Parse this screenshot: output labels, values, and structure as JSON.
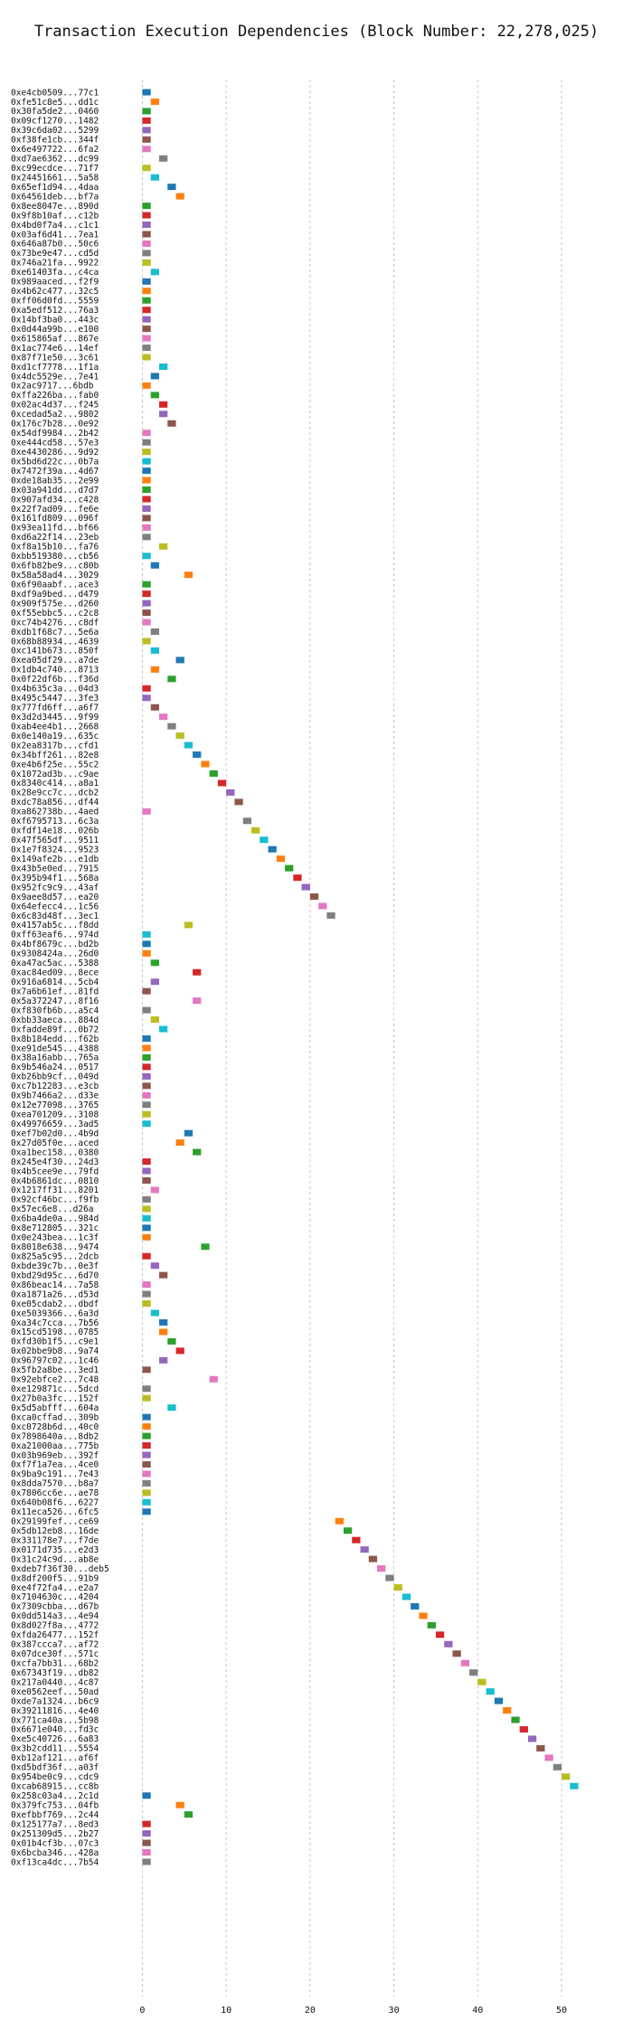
{
  "chart_data": {
    "type": "gantt",
    "title": "Transaction Execution Dependencies (Block Number: 22,278,025)",
    "xlabel": "",
    "ylabel": "",
    "xlim": [
      -3.5,
      55.5
    ],
    "xticks": [
      0,
      10,
      20,
      30,
      40,
      50
    ],
    "grid": true,
    "palette": [
      "#1f77b4",
      "#ff7f0e",
      "#2ca02c",
      "#d62728",
      "#9467bd",
      "#8c564b",
      "#e377c2",
      "#7f7f7f",
      "#bcbd22",
      "#17becf"
    ],
    "transactions": [
      {
        "hash": "0xe4cb0509...77c1",
        "start": 0
      },
      {
        "hash": "0xfe51c8e5...dd1c",
        "start": 1
      },
      {
        "hash": "0x30fa5de2...0460",
        "start": 0
      },
      {
        "hash": "0x09cf1270...1482",
        "start": 0
      },
      {
        "hash": "0x39c6da02...5299",
        "start": 0
      },
      {
        "hash": "0xf38fe1cb...344f",
        "start": 0
      },
      {
        "hash": "0x6e497722...6fa2",
        "start": 0
      },
      {
        "hash": "0xd7ae6362...dc99",
        "start": 2
      },
      {
        "hash": "0xc99ecdce...71f7",
        "start": 0
      },
      {
        "hash": "0x24451661...5a58",
        "start": 1
      },
      {
        "hash": "0x65ef1d94...4daa",
        "start": 3
      },
      {
        "hash": "0x64561deb...bf7a",
        "start": 4
      },
      {
        "hash": "0x8ee8047e...890d",
        "start": 0
      },
      {
        "hash": "0x9f8b10af...c12b",
        "start": 0
      },
      {
        "hash": "0x4bd0f7a4...c1c1",
        "start": 0
      },
      {
        "hash": "0x03af6d41...7ea1",
        "start": 0
      },
      {
        "hash": "0x646a87b0...50c6",
        "start": 0
      },
      {
        "hash": "0x73be9e47...cd5d",
        "start": 0
      },
      {
        "hash": "0x746a21fa...9922",
        "start": 0
      },
      {
        "hash": "0xe61403fa...c4ca",
        "start": 1
      },
      {
        "hash": "0x989aaced...f2f9",
        "start": 0
      },
      {
        "hash": "0x4b62c477...32c5",
        "start": 0
      },
      {
        "hash": "0xff06d0fd...5559",
        "start": 0
      },
      {
        "hash": "0xa5edf512...76a3",
        "start": 0
      },
      {
        "hash": "0x14bf3ba0...443c",
        "start": 0
      },
      {
        "hash": "0x0d44a99b...e100",
        "start": 0
      },
      {
        "hash": "0x615865af...867e",
        "start": 0
      },
      {
        "hash": "0x1ac774e6...14ef",
        "start": 0
      },
      {
        "hash": "0x87f71e50...3c61",
        "start": 0
      },
      {
        "hash": "0xd1cf7778...1f1a",
        "start": 2
      },
      {
        "hash": "0x4dc5529e...7e41",
        "start": 1
      },
      {
        "hash": "0x2ac9717...6bdb",
        "start": 0
      },
      {
        "hash": "0xffa226ba...fab0",
        "start": 1
      },
      {
        "hash": "0x02ac4d37...f245",
        "start": 2
      },
      {
        "hash": "0xcedad5a2...9802",
        "start": 2
      },
      {
        "hash": "0x176c7b28...0e92",
        "start": 3
      },
      {
        "hash": "0x54df9984...2b42",
        "start": 0
      },
      {
        "hash": "0xe444cd58...57e3",
        "start": 0
      },
      {
        "hash": "0xe4430286...9d92",
        "start": 0
      },
      {
        "hash": "0x5bd6d22c...0b7a",
        "start": 0
      },
      {
        "hash": "0x7472f39a...4d67",
        "start": 0
      },
      {
        "hash": "0xde18ab35...2e99",
        "start": 0
      },
      {
        "hash": "0x03a941dd...d7d7",
        "start": 0
      },
      {
        "hash": "0x907afd34...c428",
        "start": 0
      },
      {
        "hash": "0x22f7ad09...fe6e",
        "start": 0
      },
      {
        "hash": "0x161fd809...096f",
        "start": 0
      },
      {
        "hash": "0x93ea11fd...bf66",
        "start": 0
      },
      {
        "hash": "0xd6a22f14...23eb",
        "start": 0
      },
      {
        "hash": "0xf8a15b10...fa76",
        "start": 2
      },
      {
        "hash": "0xbb519380...cb56",
        "start": 0
      },
      {
        "hash": "0x6fb82be9...c80b",
        "start": 1
      },
      {
        "hash": "0x58a58ad4...3029",
        "start": 5
      },
      {
        "hash": "0x6f90aabf...ace3",
        "start": 0
      },
      {
        "hash": "0xdf9a9bed...d479",
        "start": 0
      },
      {
        "hash": "0x909f575e...d260",
        "start": 0
      },
      {
        "hash": "0xf55ebbc5...c2c8",
        "start": 0
      },
      {
        "hash": "0xc74b4276...c8df",
        "start": 0
      },
      {
        "hash": "0xdb1f68c7...5e6a",
        "start": 1
      },
      {
        "hash": "0x68b88934...4639",
        "start": 0
      },
      {
        "hash": "0xc141b673...850f",
        "start": 1
      },
      {
        "hash": "0xea05df29...a7de",
        "start": 4
      },
      {
        "hash": "0x1db4c740...8713",
        "start": 1
      },
      {
        "hash": "0x0f22df6b...f36d",
        "start": 3
      },
      {
        "hash": "0x4b635c3a...04d3",
        "start": 0
      },
      {
        "hash": "0x495c5447...3fe3",
        "start": 0
      },
      {
        "hash": "0x777fd6ff...a6f7",
        "start": 1
      },
      {
        "hash": "0x3d2d3445...9f99",
        "start": 2
      },
      {
        "hash": "0xab4ee4b1...2668",
        "start": 3
      },
      {
        "hash": "0x0e140a19...635c",
        "start": 4
      },
      {
        "hash": "0x2ea8317b...cfd1",
        "start": 5
      },
      {
        "hash": "0x34bff261...82e8",
        "start": 6
      },
      {
        "hash": "0xe4b6f25e...55c2",
        "start": 7
      },
      {
        "hash": "0x1072ad3b...c9ae",
        "start": 8
      },
      {
        "hash": "0x8340c414...a8a1",
        "start": 9
      },
      {
        "hash": "0x28e9cc7c...dcb2",
        "start": 10
      },
      {
        "hash": "0xdc78a856...df44",
        "start": 11
      },
      {
        "hash": "0xa862738b...4aed",
        "start": 0
      },
      {
        "hash": "0xf6795713...6c3a",
        "start": 12
      },
      {
        "hash": "0xfdf14e18...026b",
        "start": 13
      },
      {
        "hash": "0x47f565df...9511",
        "start": 14
      },
      {
        "hash": "0x1e7f8324...9523",
        "start": 15
      },
      {
        "hash": "0x149afe2b...e1db",
        "start": 16
      },
      {
        "hash": "0x43b5e0ed...7915",
        "start": 17
      },
      {
        "hash": "0x395b94f1...568a",
        "start": 18
      },
      {
        "hash": "0x952fc9c9...43af",
        "start": 19
      },
      {
        "hash": "0x9aee8d57...ea20",
        "start": 20
      },
      {
        "hash": "0x64efecc4...1c56",
        "start": 21
      },
      {
        "hash": "0x6c83d48f...3ec1",
        "start": 22
      },
      {
        "hash": "0x4157ab5c...f8dd",
        "start": 5
      },
      {
        "hash": "0xff63eaf6...974d",
        "start": 0
      },
      {
        "hash": "0x4bf8679c...bd2b",
        "start": 0
      },
      {
        "hash": "0x9308424a...26d0",
        "start": 0
      },
      {
        "hash": "0xa47ac5ac...5388",
        "start": 1
      },
      {
        "hash": "0xac84ed09...8ece",
        "start": 6
      },
      {
        "hash": "0x916a6814...5cb4",
        "start": 1
      },
      {
        "hash": "0x7a6b61ef...81fd",
        "start": 0
      },
      {
        "hash": "0x5a372247...8f16",
        "start": 6
      },
      {
        "hash": "0xf830fb6b...a5c4",
        "start": 0
      },
      {
        "hash": "0xbb33aeca...884d",
        "start": 1
      },
      {
        "hash": "0xfadde89f...0b72",
        "start": 2
      },
      {
        "hash": "0x8b184edd...f62b",
        "start": 0
      },
      {
        "hash": "0xe91de545...4388",
        "start": 0
      },
      {
        "hash": "0x38a16abb...765a",
        "start": 0
      },
      {
        "hash": "0x9b546a24...0517",
        "start": 0
      },
      {
        "hash": "0xb26bb9cf...049d",
        "start": 0
      },
      {
        "hash": "0xc7b12283...e3cb",
        "start": 0
      },
      {
        "hash": "0x9b7466a2...d33e",
        "start": 0
      },
      {
        "hash": "0x12e77098...3765",
        "start": 0
      },
      {
        "hash": "0xea701209...3108",
        "start": 0
      },
      {
        "hash": "0x49976659...3ad5",
        "start": 0
      },
      {
        "hash": "0xef7b02d0...4b9d",
        "start": 5
      },
      {
        "hash": "0x27d05f0e...aced",
        "start": 4
      },
      {
        "hash": "0xa1bec158...0380",
        "start": 6
      },
      {
        "hash": "0x245e4f30...24d3",
        "start": 0
      },
      {
        "hash": "0x4b5cee9e...79fd",
        "start": 0
      },
      {
        "hash": "0x4b6861dc...0810",
        "start": 0
      },
      {
        "hash": "0x1217ff31...8201",
        "start": 1
      },
      {
        "hash": "0x92cf46bc...f9fb",
        "start": 0
      },
      {
        "hash": "0x57ec6e8...d26a",
        "start": 0
      },
      {
        "hash": "0x6ba4de0a...984d",
        "start": 0
      },
      {
        "hash": "0x8e712805...321c",
        "start": 0
      },
      {
        "hash": "0x0e243bea...1c3f",
        "start": 0
      },
      {
        "hash": "0x8018e638...9474",
        "start": 7
      },
      {
        "hash": "0x825a5c95...2dcb",
        "start": 0
      },
      {
        "hash": "0xbde39c7b...0e3f",
        "start": 1
      },
      {
        "hash": "0xbd29d95c...6d70",
        "start": 2
      },
      {
        "hash": "0x86beac14...7a58",
        "start": 0
      },
      {
        "hash": "0xa1871a26...d53d",
        "start": 0
      },
      {
        "hash": "0xe05cdab2...dbdf",
        "start": 0
      },
      {
        "hash": "0xe5039366...6a3d",
        "start": 1
      },
      {
        "hash": "0xa34c7cca...7b56",
        "start": 2
      },
      {
        "hash": "0x15cd5198...0785",
        "start": 2
      },
      {
        "hash": "0xfd30b1f5...c9e1",
        "start": 3
      },
      {
        "hash": "0x02bbe9b8...9a74",
        "start": 4
      },
      {
        "hash": "0x96797c02...1c46",
        "start": 2
      },
      {
        "hash": "0x5fb2a8be...3ed1",
        "start": 0
      },
      {
        "hash": "0x92ebfce2...7c48",
        "start": 8
      },
      {
        "hash": "0xe129871c...5dcd",
        "start": 0
      },
      {
        "hash": "0x27b0a3fc...152f",
        "start": 0
      },
      {
        "hash": "0x5d5abfff...604a",
        "start": 3
      },
      {
        "hash": "0xca0cffad...309b",
        "start": 0
      },
      {
        "hash": "0xc0728b6d...40c0",
        "start": 0
      },
      {
        "hash": "0x7898640a...8db2",
        "start": 0
      },
      {
        "hash": "0xa21000aa...775b",
        "start": 0
      },
      {
        "hash": "0x03b969eb...392f",
        "start": 0
      },
      {
        "hash": "0xf7f1a7ea...4ce0",
        "start": 0
      },
      {
        "hash": "0x9ba9c191...7e43",
        "start": 0
      },
      {
        "hash": "0x8dda7570...b8a7",
        "start": 0
      },
      {
        "hash": "0x7806cc6e...ae78",
        "start": 0
      },
      {
        "hash": "0x640b08f6...6227",
        "start": 0
      },
      {
        "hash": "0x11eca526...6fc5",
        "start": 0
      },
      {
        "hash": "0x29199fef...ce69",
        "start": 23
      },
      {
        "hash": "0x5db12eb8...16de",
        "start": 24
      },
      {
        "hash": "0x331178e7...f7de",
        "start": 25
      },
      {
        "hash": "0x0171d735...e2d3",
        "start": 26
      },
      {
        "hash": "0x31c24c9d...ab8e",
        "start": 27
      },
      {
        "hash": "0xdeb7f36f30...deb5",
        "start": 28
      },
      {
        "hash": "0x8df200f5...91b9",
        "start": 29
      },
      {
        "hash": "0xe4f72fa4...e2a7",
        "start": 30
      },
      {
        "hash": "0x7104630c...4204",
        "start": 31
      },
      {
        "hash": "0x7309cbba...d67b",
        "start": 32
      },
      {
        "hash": "0x0dd514a3...4e94",
        "start": 33
      },
      {
        "hash": "0x8d027f8a...4772",
        "start": 34
      },
      {
        "hash": "0xfda26477...152f",
        "start": 35
      },
      {
        "hash": "0x387ccca7...af72",
        "start": 36
      },
      {
        "hash": "0x07dce30f...571c",
        "start": 37
      },
      {
        "hash": "0xcfa7bb31...68b2",
        "start": 38
      },
      {
        "hash": "0x67343f19...db82",
        "start": 39
      },
      {
        "hash": "0x217a0440...4c87",
        "start": 40
      },
      {
        "hash": "0xe0562eef...50ad",
        "start": 41
      },
      {
        "hash": "0xde7a1324...b6c9",
        "start": 42
      },
      {
        "hash": "0x39211816...4e40",
        "start": 43
      },
      {
        "hash": "0x771ca40a...5b98",
        "start": 44
      },
      {
        "hash": "0x6671e040...fd3c",
        "start": 45
      },
      {
        "hash": "0xe5c40726...6a83",
        "start": 46
      },
      {
        "hash": "0x3b2cdd11...5554",
        "start": 47
      },
      {
        "hash": "0xb12af121...af6f",
        "start": 48
      },
      {
        "hash": "0xd5bdf36f...a03f",
        "start": 49
      },
      {
        "hash": "0x954be0c9...cdc9",
        "start": 50
      },
      {
        "hash": "0xcab68915...cc8b",
        "start": 51
      },
      {
        "hash": "0x258c03a4...2c1d",
        "start": 0
      },
      {
        "hash": "0x379fc753...04fb",
        "start": 4
      },
      {
        "hash": "0xefbbf769...2c44",
        "start": 5
      },
      {
        "hash": "0x125177a7...8ed3",
        "start": 0
      },
      {
        "hash": "0x251309d5...2b27",
        "start": 0
      },
      {
        "hash": "0x01b4cf3b...07c3",
        "start": 0
      },
      {
        "hash": "0x6bcba346...428a",
        "start": 0
      },
      {
        "hash": "0xf13ca4dc...7b54",
        "start": 0
      }
    ]
  }
}
